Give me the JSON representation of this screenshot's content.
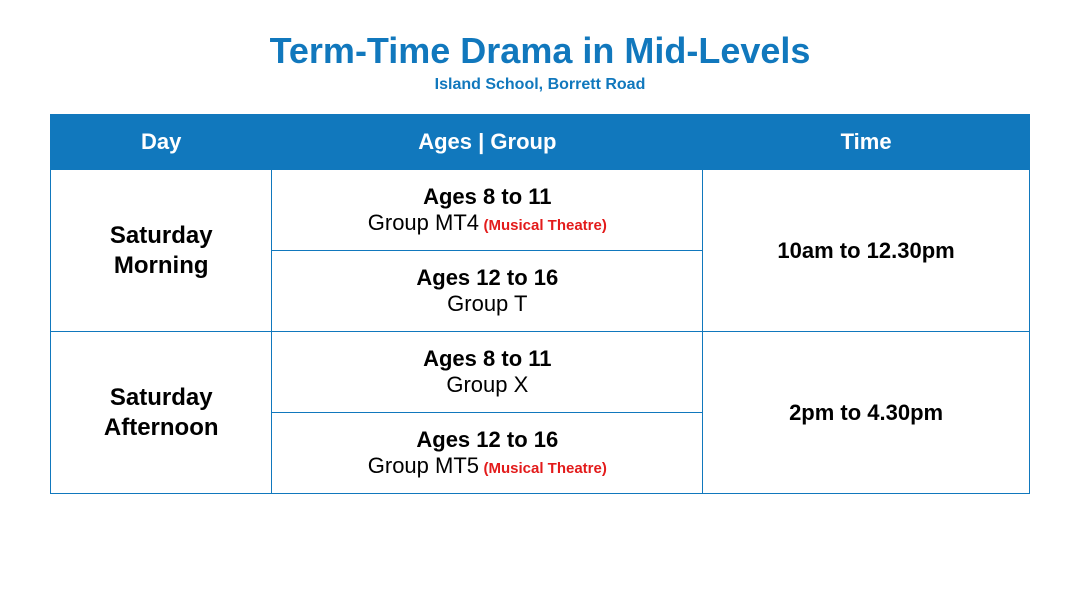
{
  "colors": {
    "brand_blue": "#1178bd",
    "header_bg": "#1178bd",
    "header_text": "#ffffff",
    "border": "#1178bd",
    "note_red": "#e31b1b",
    "text": "#000000"
  },
  "title": "Term-Time Drama in Mid-Levels",
  "subtitle": "Island School, Borrett Road",
  "table": {
    "columns": [
      "Day",
      "Ages | Group",
      "Time"
    ],
    "sessions": [
      {
        "day_line1": "Saturday",
        "day_line2": "Morning",
        "time": "10am to 12.30pm",
        "groups": [
          {
            "ages": "Ages 8 to 11",
            "group": "Group MT4",
            "note": "(Musical Theatre)"
          },
          {
            "ages": "Ages 12 to 16",
            "group": "Group T",
            "note": ""
          }
        ]
      },
      {
        "day_line1": "Saturday",
        "day_line2": "Afternoon",
        "time": "2pm to 4.30pm",
        "groups": [
          {
            "ages": "Ages 8 to 11",
            "group": "Group X",
            "note": ""
          },
          {
            "ages": "Ages 12 to 16",
            "group": "Group MT5",
            "note": "(Musical Theatre)"
          }
        ]
      }
    ]
  }
}
